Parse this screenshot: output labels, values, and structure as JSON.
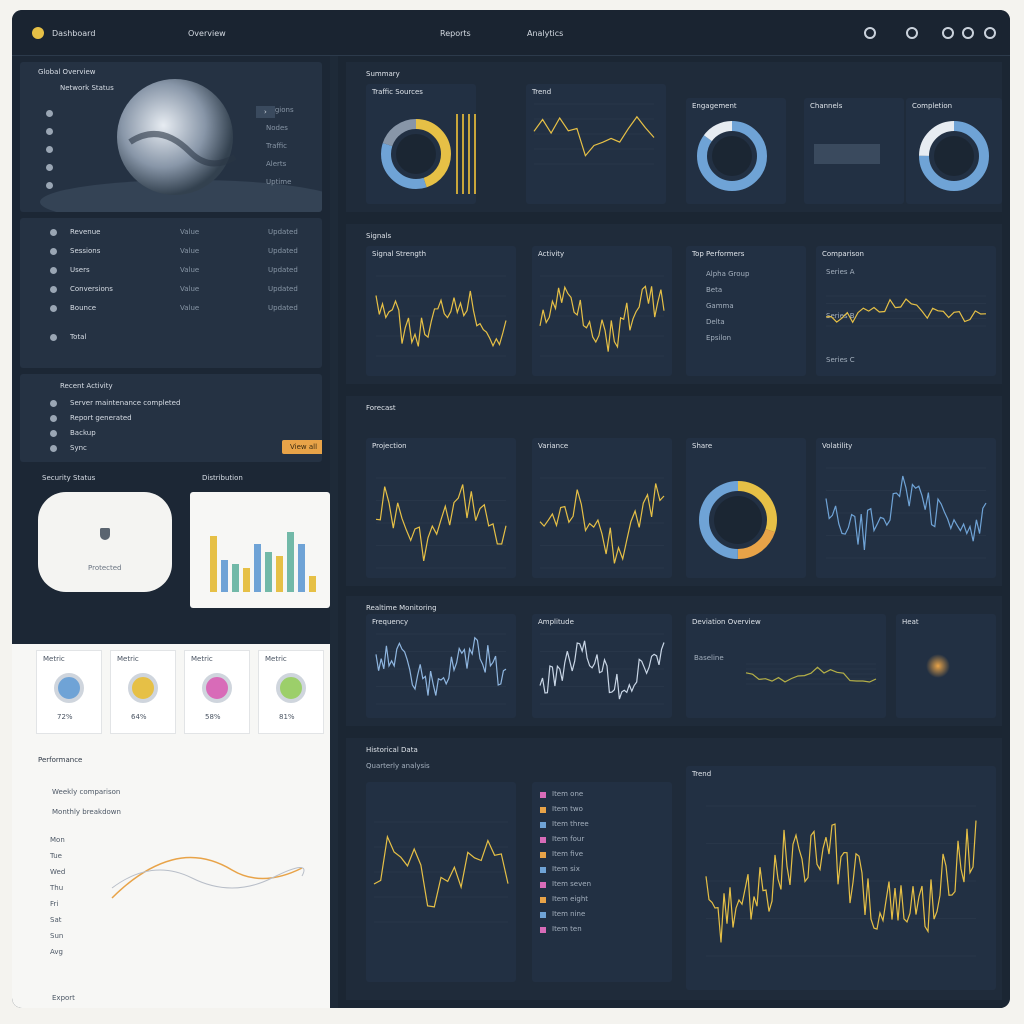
{
  "topbar": {
    "app_title": "Dashboard",
    "nav_1": "Overview",
    "nav_2": "Reports",
    "nav_3": "Analytics"
  },
  "left": {
    "hero_title": "Global Overview",
    "hero_subtitle": "Network Status",
    "hero_list": [
      "Regions",
      "Nodes",
      "Traffic",
      "Alerts",
      "Uptime"
    ],
    "table_rows": [
      {
        "label": "Revenue",
        "mid": "Value",
        "right": "Updated"
      },
      {
        "label": "Sessions",
        "mid": "Value",
        "right": "Updated"
      },
      {
        "label": "Users",
        "mid": "Value",
        "right": "Updated"
      },
      {
        "label": "Conversions",
        "mid": "Value",
        "right": "Updated"
      },
      {
        "label": "Bounce",
        "mid": "Value",
        "right": "Updated"
      },
      {
        "label": "Total",
        "mid": "",
        "right": ""
      }
    ],
    "settings_title": "Recent Activity",
    "settings_rows": [
      "Server maintenance completed",
      "Report generated",
      "Backup",
      "Sync"
    ],
    "settings_button": "View all",
    "card_a_title": "Security Status",
    "card_b_title": "Distribution",
    "card_a_label": "Protected",
    "card_b_bars": [
      0.7,
      0.4,
      0.35,
      0.3,
      0.6,
      0.5,
      0.45,
      0.75,
      0.6,
      0.2
    ],
    "stat_titles": [
      "Metric",
      "Metric",
      "Metric",
      "Metric"
    ],
    "stat_values": [
      "72%",
      "64%",
      "58%",
      "81%"
    ],
    "bottom_title": "Performance",
    "bottom_sub1": "Weekly comparison",
    "bottom_sub2": "Monthly breakdown",
    "bottom_rows": [
      "Mon",
      "Tue",
      "Wed",
      "Thu",
      "Fri",
      "Sat",
      "Sun",
      "Avg"
    ],
    "footer_label": "Export"
  },
  "main": {
    "section_1": {
      "title": "Summary",
      "cards": [
        {
          "title": "Traffic Sources"
        },
        {
          "title": "Trend"
        },
        {
          "title": "Engagement"
        },
        {
          "title": "Channels"
        },
        {
          "title": "Completion"
        }
      ]
    },
    "section_2": {
      "title": "Signals",
      "cards": [
        {
          "title": "Signal Strength"
        },
        {
          "title": "Activity"
        },
        {
          "title": "Top Performers",
          "rows": [
            "Alpha Group",
            "Beta",
            "Gamma",
            "Delta",
            "Epsilon"
          ]
        },
        {
          "title": "Comparison",
          "rows": [
            "Series A",
            "Series B",
            "Series C"
          ]
        }
      ]
    },
    "section_3": {
      "title": "Forecast",
      "cards": [
        {
          "title": "Projection"
        },
        {
          "title": "Variance"
        },
        {
          "title": "Share"
        },
        {
          "title": "Volatility"
        }
      ]
    },
    "section_4": {
      "title": "Realtime Monitoring",
      "cards": [
        {
          "title": "Frequency"
        },
        {
          "title": "Amplitude"
        },
        {
          "title": "Deviation Overview",
          "sub": "Baseline"
        },
        {
          "title": "Heat"
        }
      ]
    },
    "section_5": {
      "title": "Historical Data",
      "subtitle": "Quarterly analysis",
      "list_rows": [
        "Item one",
        "Item two",
        "Item three",
        "Item four",
        "Item five",
        "Item six",
        "Item seven",
        "Item eight",
        "Item nine",
        "Item ten"
      ],
      "big_title": "Trend"
    }
  },
  "colors": {
    "accent_yellow": "#e6c046",
    "accent_blue": "#6fa3d6",
    "accent_orange": "#e8a348",
    "panel_dark": "#223043"
  }
}
